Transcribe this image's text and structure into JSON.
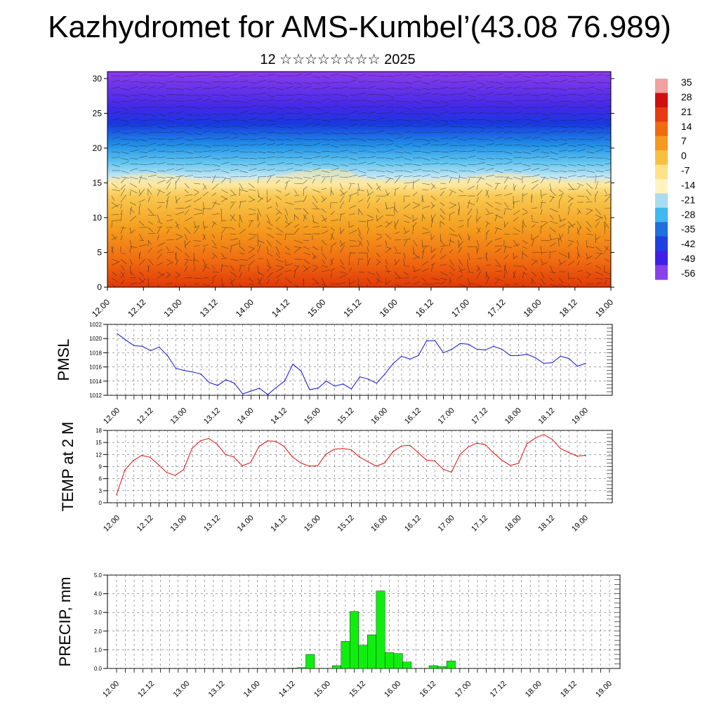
{
  "header": {
    "title": "Kazhydromet for AMS-Kumbel’(43.08 76.989)",
    "subtitle": "12 ☆☆☆☆☆☆☆☆ 2025"
  },
  "chart_data": [
    {
      "type": "heatmap",
      "name": "vertical cross-section",
      "x_tick_labels": [
        "12.00",
        "12.12",
        "13.00",
        "13.12",
        "14.00",
        "14.12",
        "15.00",
        "15.12",
        "16.00",
        "16.12",
        "17.00",
        "17.12",
        "18.00",
        "18.12",
        "19.00"
      ],
      "y_tick_labels": [
        "0",
        "5",
        "10",
        "15",
        "20",
        "25",
        "30"
      ],
      "ylim": [
        0,
        31
      ],
      "colorbar_labels": [
        "35",
        "28",
        "21",
        "14",
        "7",
        "0",
        "-7",
        "-14",
        "-21",
        "-28",
        "-35",
        "-42",
        "-49",
        "-56"
      ],
      "colorbar_colors": [
        "#f2a0a0",
        "#d01010",
        "#e83a10",
        "#f06a10",
        "#f49a20",
        "#f8c040",
        "#fde28a",
        "#fff4c0",
        "#a8dcf0",
        "#40b8f0",
        "#2070e0",
        "#2040e0",
        "#4020e8",
        "#8840ec"
      ],
      "freezing_level_km": 15,
      "arrows_overlay": true
    },
    {
      "type": "line",
      "ylabel": "PMSL",
      "ylim": [
        1012,
        1022
      ],
      "y_ticks": [
        "1012",
        "1014",
        "1016",
        "1018",
        "1020",
        "1022"
      ],
      "x_tick_labels": [
        "12.00",
        "12.12",
        "13.00",
        "13.12",
        "14.00",
        "14.12",
        "15.00",
        "15.12",
        "16.00",
        "16.12",
        "17.00",
        "17.12",
        "18.00",
        "18.12",
        "19.00"
      ],
      "color": "#1010d0",
      "values": [
        1020.7,
        1019.8,
        1019.0,
        1018.9,
        1018.3,
        1018.8,
        1017.6,
        1015.8,
        1015.5,
        1015.3,
        1015.0,
        1013.8,
        1013.4,
        1014.2,
        1013.7,
        1012.2,
        1012.6,
        1013.0,
        1012.1,
        1013.1,
        1014.0,
        1016.4,
        1015.4,
        1012.8,
        1013.0,
        1014.0,
        1013.3,
        1013.6,
        1012.9,
        1014.6,
        1014.3,
        1013.7,
        1015.0,
        1016.5,
        1017.5,
        1017.1,
        1017.6,
        1019.7,
        1019.7,
        1018.0,
        1018.5,
        1019.3,
        1019.2,
        1018.5,
        1018.4,
        1018.9,
        1018.5,
        1017.6,
        1017.6,
        1017.8,
        1017.3,
        1016.5,
        1016.6,
        1017.5,
        1017.2,
        1016.1,
        1016.5
      ]
    },
    {
      "type": "line",
      "ylabel": "TEMP at 2 M",
      "ylim": [
        0,
        18
      ],
      "y_ticks": [
        "0",
        "3",
        "6",
        "9",
        "12",
        "15",
        "18"
      ],
      "x_tick_labels": [
        "12.00",
        "12.12",
        "13.00",
        "13.12",
        "14.00",
        "14.12",
        "15.00",
        "15.12",
        "16.00",
        "16.12",
        "17.00",
        "17.12",
        "18.00",
        "18.12",
        "19.00"
      ],
      "color": "#e01010",
      "values": [
        2.0,
        8.2,
        10.5,
        11.8,
        11.3,
        9.5,
        7.5,
        6.8,
        8.2,
        13.5,
        15.4,
        16.0,
        14.6,
        12.0,
        11.4,
        9.2,
        10.0,
        14.0,
        15.4,
        15.3,
        14.0,
        11.4,
        9.9,
        9.1,
        9.2,
        12.1,
        13.3,
        13.5,
        13.2,
        11.4,
        10.2,
        9.1,
        9.9,
        12.7,
        14.1,
        14.3,
        12.5,
        10.6,
        10.4,
        8.3,
        7.6,
        12.0,
        13.9,
        14.8,
        14.5,
        12.4,
        10.6,
        9.3,
        9.8,
        14.7,
        16.1,
        17.0,
        15.8,
        13.5,
        12.5,
        11.6,
        11.8
      ]
    },
    {
      "type": "bar",
      "ylabel": "PRECIP, mm",
      "ylim": [
        0,
        5
      ],
      "y_ticks": [
        "0.0",
        "1.0",
        "2.0",
        "3.0",
        "4.0",
        "5.0"
      ],
      "x_tick_labels": [
        "12.00",
        "12.12",
        "13.00",
        "13.12",
        "14.00",
        "14.12",
        "15.00",
        "15.12",
        "16.00",
        "16.12",
        "17.00",
        "17.12",
        "18.00",
        "18.12",
        "19.00"
      ],
      "color": "#10ee10",
      "values": [
        0,
        0,
        0,
        0,
        0,
        0,
        0,
        0,
        0,
        0,
        0,
        0,
        0,
        0,
        0,
        0,
        0,
        0,
        0,
        0,
        0.02,
        0.05,
        0.75,
        0,
        0,
        0.15,
        1.45,
        3.05,
        1.25,
        1.8,
        4.15,
        0.85,
        0.8,
        0.35,
        0,
        0,
        0.15,
        0.1,
        0.4,
        0,
        0,
        0,
        0,
        0,
        0,
        0,
        0,
        0,
        0,
        0,
        0,
        0,
        0,
        0,
        0,
        0,
        0
      ]
    }
  ]
}
